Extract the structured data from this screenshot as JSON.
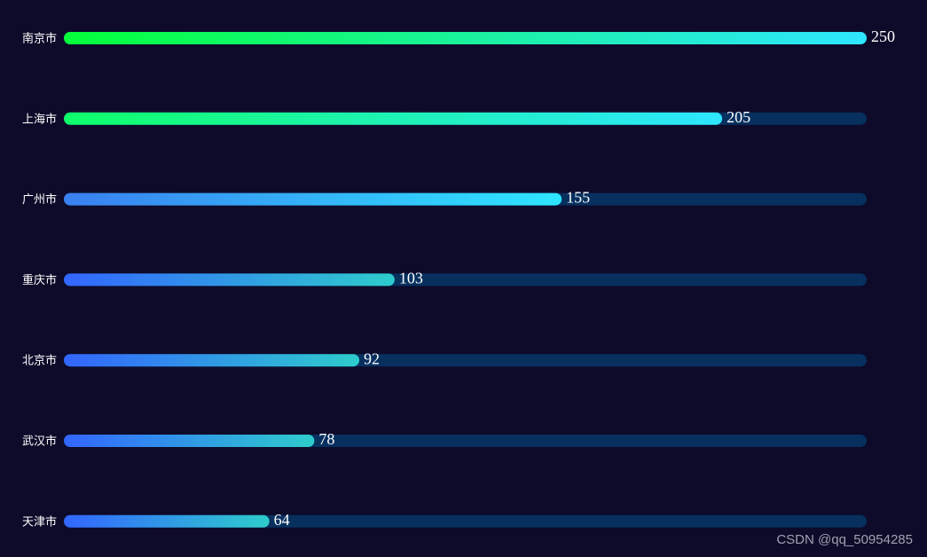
{
  "chart_data": {
    "type": "bar",
    "orientation": "horizontal",
    "categories": [
      "南京市",
      "上海市",
      "广州市",
      "重庆市",
      "北京市",
      "武汉市",
      "天津市"
    ],
    "values": [
      250,
      205,
      155,
      103,
      92,
      78,
      64
    ],
    "xlim": [
      0,
      250
    ],
    "track_color": "#07305f",
    "gradients": [
      [
        "#05ff3a",
        "#2ee6ff"
      ],
      [
        "#0fff6a",
        "#2ee6ff"
      ],
      [
        "#3a80f0",
        "#2ee6ff"
      ],
      [
        "#3366ff",
        "#2ecccc"
      ],
      [
        "#3366ff",
        "#2ecccc"
      ],
      [
        "#3366ff",
        "#2ecccc"
      ],
      [
        "#3366ff",
        "#2ecccc"
      ]
    ]
  },
  "watermark": "CSDN @qq_50954285"
}
